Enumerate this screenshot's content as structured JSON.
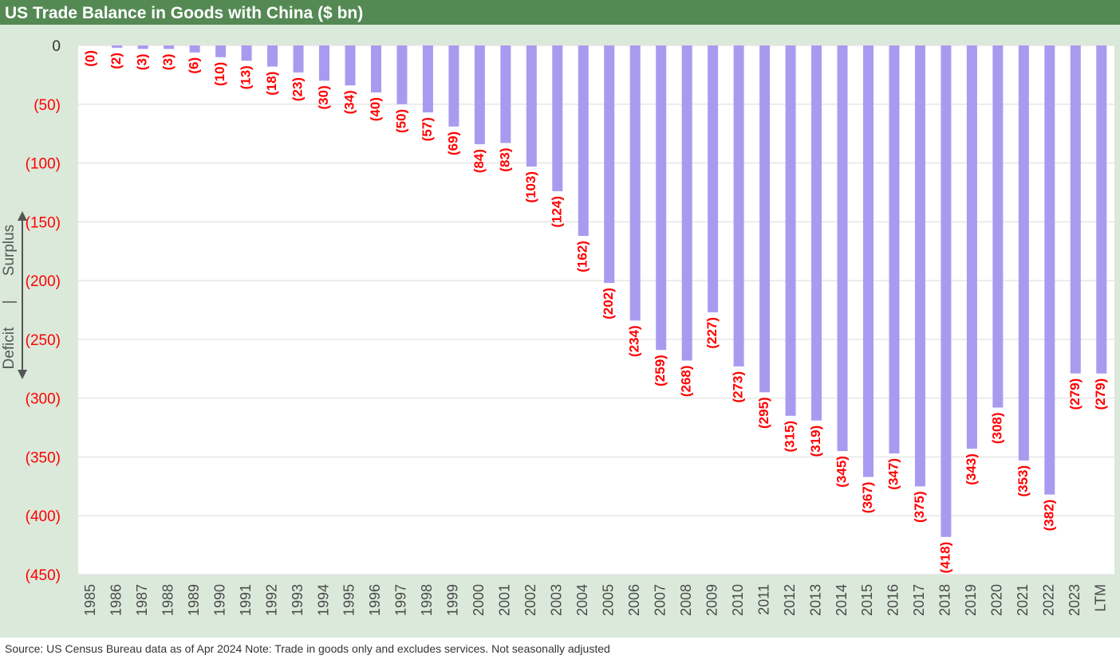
{
  "title": "US Trade Balance in Goods with China ($ bn)",
  "source_note": "Source: US Census Bureau data as of Apr 2024 Note: Trade in goods only and excludes services. Not seasonally adjusted",
  "side_labels": {
    "surplus": "Surplus",
    "separator": "|",
    "deficit": "Deficit"
  },
  "colors": {
    "title_bg": "#548954",
    "chart_bg": "#dae9da",
    "bar": "#a89bef",
    "negative_text": "#ff0000",
    "zero_text": "#333333",
    "grid": "#e6e6e6"
  },
  "chart_data": {
    "type": "bar",
    "title": "US Trade Balance in Goods with China ($ bn)",
    "xlabel": "",
    "ylabel": "",
    "ylim": [
      -450,
      0
    ],
    "grid": true,
    "yticks": [
      0,
      -50,
      -100,
      -150,
      -200,
      -250,
      -300,
      -350,
      -400,
      -450
    ],
    "ytick_labels": [
      "0",
      "(50)",
      "(100)",
      "(150)",
      "(200)",
      "(250)",
      "(300)",
      "(350)",
      "(400)",
      "(450)"
    ],
    "categories": [
      "1985",
      "1986",
      "1987",
      "1988",
      "1989",
      "1990",
      "1991",
      "1992",
      "1993",
      "1994",
      "1995",
      "1996",
      "1997",
      "1998",
      "1999",
      "2000",
      "2001",
      "2002",
      "2003",
      "2004",
      "2005",
      "2006",
      "2007",
      "2008",
      "2009",
      "2010",
      "2011",
      "2012",
      "2013",
      "2014",
      "2015",
      "2016",
      "2017",
      "2018",
      "2019",
      "2020",
      "2021",
      "2022",
      "2023",
      "LTM"
    ],
    "values": [
      0,
      -2,
      -3,
      -3,
      -6,
      -10,
      -13,
      -18,
      -23,
      -30,
      -34,
      -40,
      -50,
      -57,
      -69,
      -84,
      -83,
      -103,
      -124,
      -162,
      -202,
      -234,
      -259,
      -268,
      -227,
      -273,
      -295,
      -315,
      -319,
      -345,
      -367,
      -347,
      -375,
      -418,
      -343,
      -308,
      -353,
      -382,
      -279,
      -279
    ],
    "data_labels": [
      "(0)",
      "(2)",
      "(3)",
      "(3)",
      "(6)",
      "(10)",
      "(13)",
      "(18)",
      "(23)",
      "(30)",
      "(34)",
      "(40)",
      "(50)",
      "(57)",
      "(69)",
      "(84)",
      "(83)",
      "(103)",
      "(124)",
      "(162)",
      "(202)",
      "(234)",
      "(259)",
      "(268)",
      "(227)",
      "(273)",
      "(295)",
      "(315)",
      "(319)",
      "(345)",
      "(367)",
      "(347)",
      "(375)",
      "(418)",
      "(343)",
      "(308)",
      "(353)",
      "(382)",
      "(279)",
      "(279)"
    ]
  }
}
